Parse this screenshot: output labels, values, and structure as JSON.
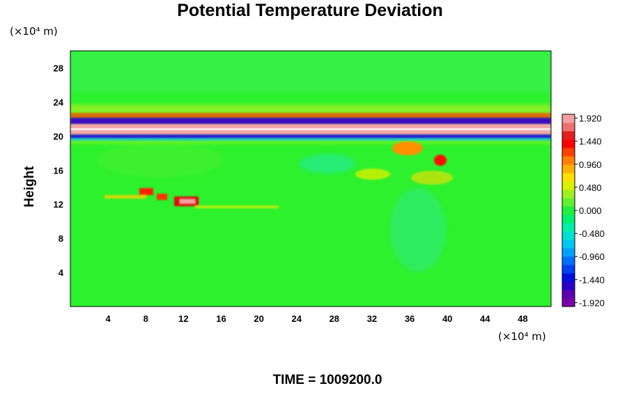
{
  "chart_data": {
    "type": "heatmap",
    "title": "Potential Temperature Deviation",
    "ylabel": "Height",
    "x_unit": "(×10⁴ m)",
    "y_unit": "(×10⁴ m)",
    "xlim": [
      0,
      51
    ],
    "ylim": [
      0,
      30
    ],
    "x_ticks": [
      4,
      8,
      12,
      16,
      20,
      24,
      28,
      32,
      36,
      40,
      44,
      48
    ],
    "y_ticks": [
      4,
      8,
      12,
      16,
      20,
      24,
      28
    ],
    "colorbar": {
      "range": [
        -2.0,
        2.0
      ],
      "tick_values": [
        1.92,
        1.44,
        0.96,
        0.48,
        0.0,
        -0.48,
        -0.96,
        -1.44,
        -1.92
      ],
      "tick_labels": [
        "1.920",
        "1.440",
        "0.960",
        "0.480",
        "0.000",
        "-0.480",
        "-0.960",
        "-1.440",
        "-1.920"
      ],
      "colors": [
        "#7a00a8",
        "#5a00b0",
        "#2a00c8",
        "#0010e0",
        "#0040f0",
        "#0070ff",
        "#00a0ff",
        "#00c8f0",
        "#00e0d0",
        "#00f0a8",
        "#00f070",
        "#20f040",
        "#60f030",
        "#a0f020",
        "#d8f000",
        "#ffe000",
        "#ffb000",
        "#ff8000",
        "#ff4000",
        "#ff0000",
        "#e02020",
        "#f07070",
        "#f4a0a0"
      ]
    },
    "annotation": "TIME = 1009200.0",
    "field_features": [
      {
        "feature": "warm band",
        "x_range": [
          0,
          51
        ],
        "y": 20.6,
        "value": 1.92
      },
      {
        "feature": "cold band",
        "x_range": [
          0,
          51
        ],
        "y": 21.3,
        "value": -1.92
      },
      {
        "feature": "cold band",
        "x_range": [
          0,
          51
        ],
        "y": 20.0,
        "value": -1.44
      },
      {
        "feature": "warm filaments",
        "x_range": [
          8,
          13
        ],
        "y": 12.3,
        "value": 1.44
      },
      {
        "feature": "warm eddies",
        "x_range": [
          34,
          41
        ],
        "y": 17.5,
        "value": 0.96
      },
      {
        "feature": "background",
        "x_range": [
          0,
          51
        ],
        "y_range": [
          0,
          30
        ],
        "value": 0.0
      }
    ]
  }
}
